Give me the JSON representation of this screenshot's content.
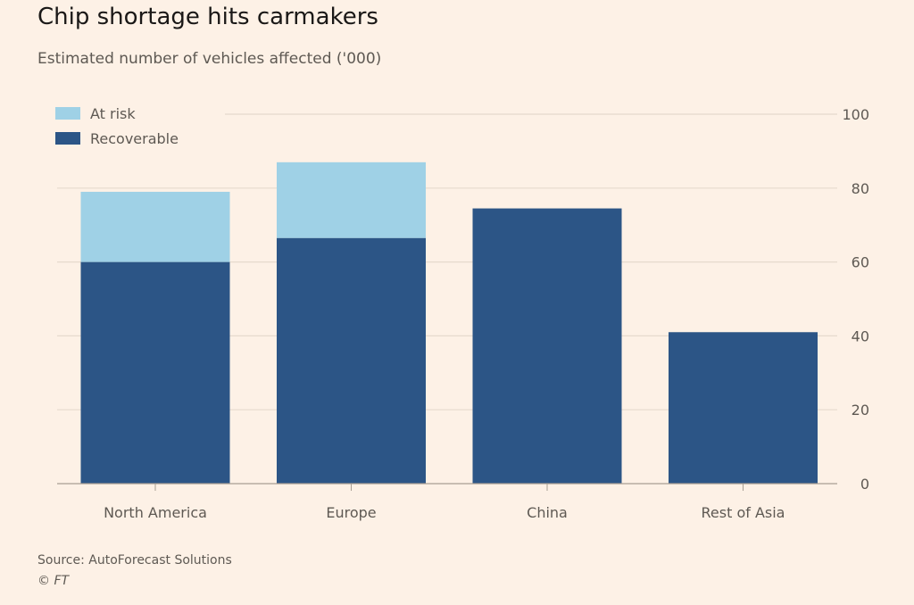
{
  "title": "Chip shortage hits carmakers",
  "subtitle": "Estimated number of vehicles affected ('000)",
  "source": "Source: AutoForecast Solutions",
  "copyright": "© FT",
  "colors": {
    "background": "#fdf1e6",
    "recoverable": "#2c5586",
    "at_risk": "#9fd1e6",
    "gridline": "#e6dacd",
    "axis": "#a89e93",
    "text": "#5e5953"
  },
  "chart_data": {
    "type": "bar",
    "stacked": true,
    "title": "Chip shortage hits carmakers",
    "subtitle": "Estimated number of vehicles affected ('000)",
    "categories": [
      "North America",
      "Europe",
      "China",
      "Rest of Asia"
    ],
    "series": [
      {
        "name": "Recoverable",
        "values": [
          60,
          66.5,
          74.5,
          41
        ]
      },
      {
        "name": "At risk",
        "values": [
          19,
          20.5,
          0,
          0
        ]
      }
    ],
    "ylim": [
      0,
      100
    ],
    "yticks": [
      0,
      20,
      40,
      60,
      80,
      100
    ],
    "yaxis_position": "right",
    "grid": true,
    "legend_position": "top-left",
    "legend_order": [
      "At risk",
      "Recoverable"
    ]
  }
}
